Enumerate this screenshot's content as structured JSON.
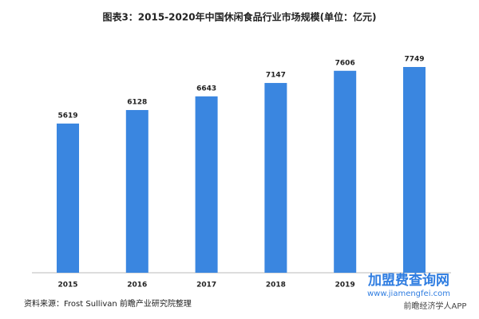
{
  "chart_data": {
    "type": "bar",
    "title": "图表3：2015-2020年中国休闲食品行业市场规模(单位：亿元)",
    "categories": [
      "2015",
      "2016",
      "2017",
      "2018",
      "2019",
      null
    ],
    "values": [
      5619,
      6128,
      6643,
      7147,
      7606,
      7749
    ],
    "color": "#3a86e0",
    "source": "资料来源：Frost Sullivan 前瞻产业研究院整理"
  },
  "watermarks": [
    "加盟费查询网",
    "www.jiamengfei.com",
    "前瞻经济学人APP"
  ]
}
